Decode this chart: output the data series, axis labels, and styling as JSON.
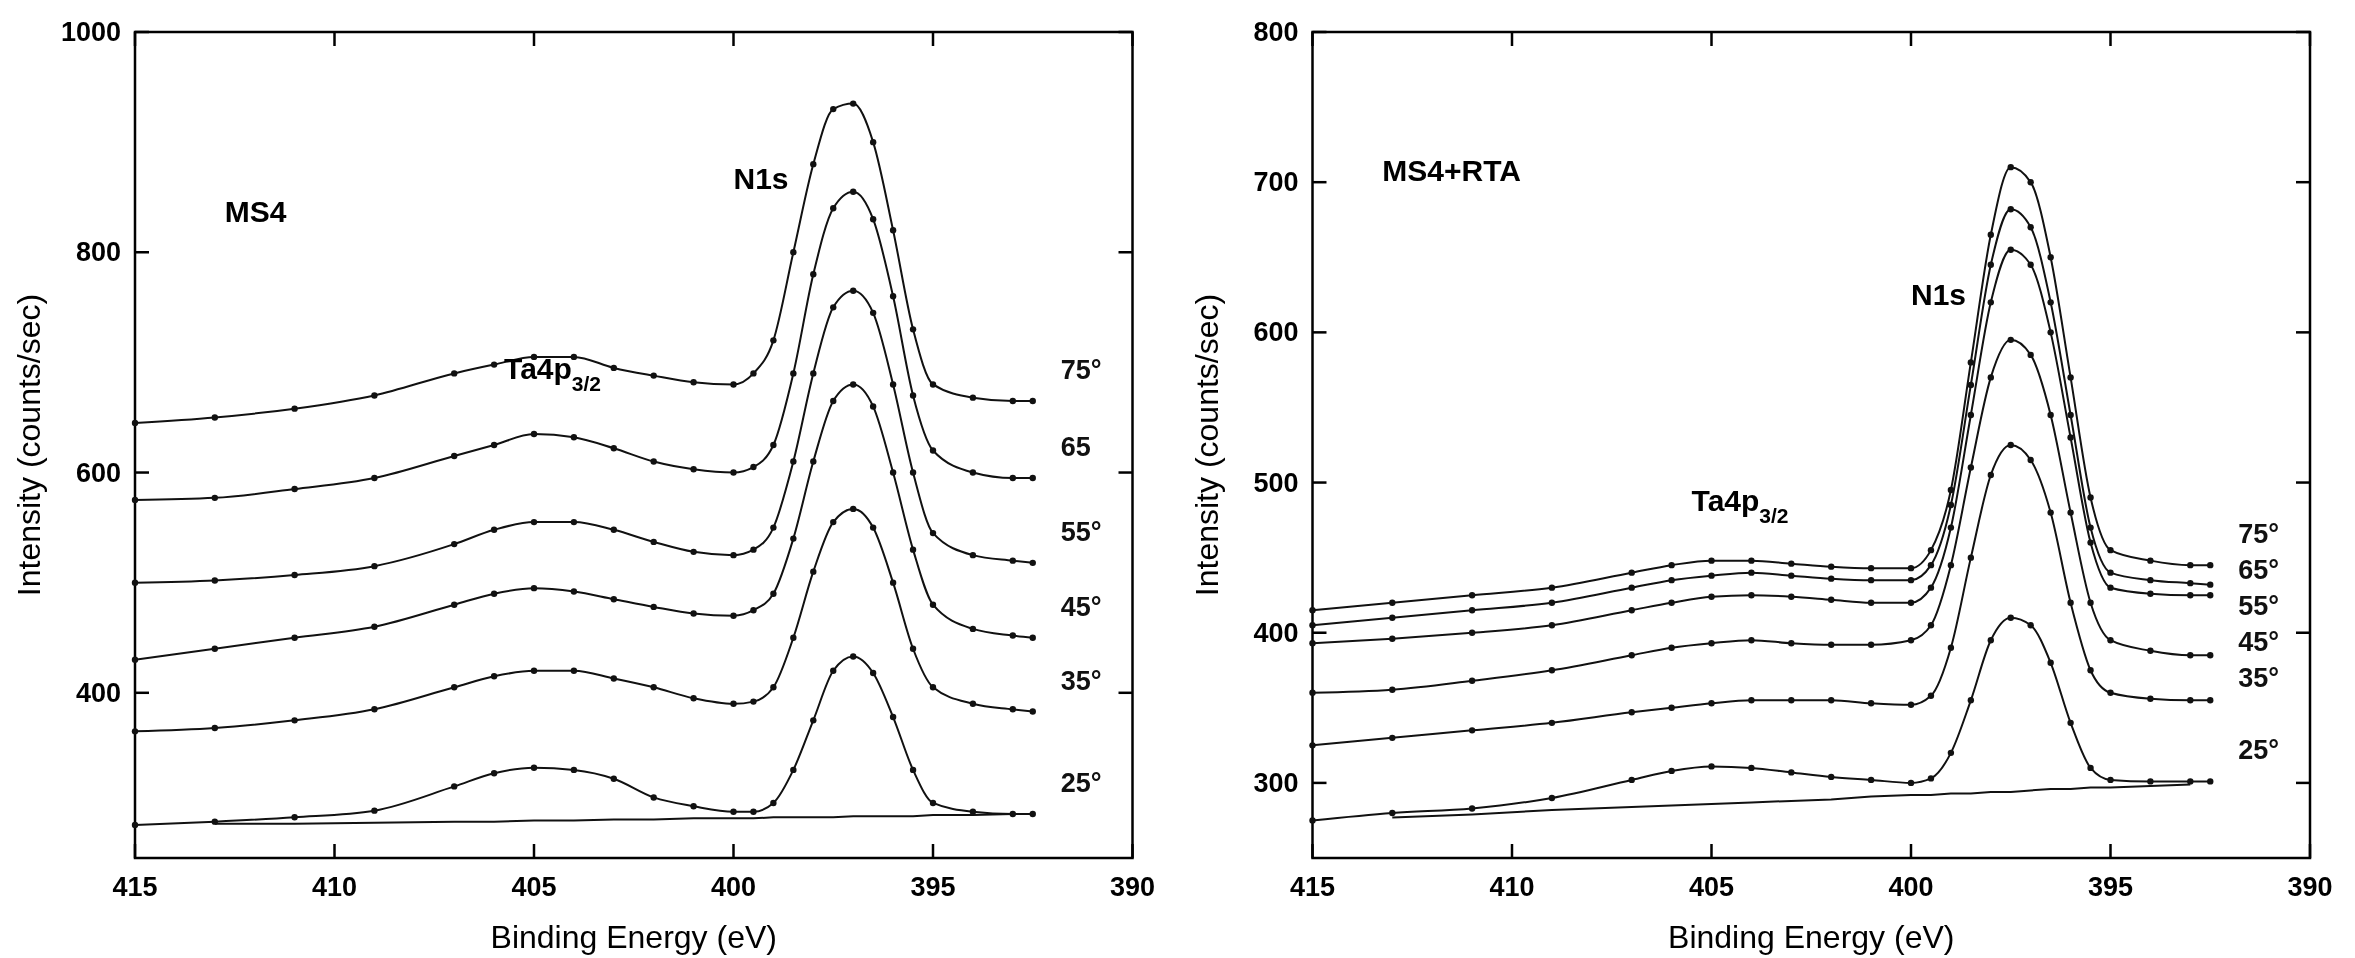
{
  "chart_data": [
    {
      "type": "line",
      "xlabel": "Binding Energy (eV)",
      "ylabel": "Intensity (counts/sec)",
      "xlim": [
        415,
        390
      ],
      "xticks": [
        415,
        410,
        405,
        400,
        395,
        390
      ],
      "ylim": [
        250,
        1000
      ],
      "yticks": [
        400,
        600,
        800,
        1000
      ],
      "grid": false,
      "legend": false,
      "marker": "circle",
      "line_style": "solid",
      "x": [
        415,
        413,
        411,
        409,
        407,
        406,
        405,
        404,
        403,
        402,
        401,
        400,
        399.5,
        399,
        398.5,
        398,
        397.5,
        397,
        396.5,
        396,
        395.5,
        395,
        394,
        393,
        392.5
      ],
      "annotations": [
        "MS4",
        "Ta4p$_{3/2}$",
        "N1s"
      ],
      "series": [
        {
          "name": "75°",
          "color": "#111111",
          "values": [
            645,
            650,
            658,
            670,
            690,
            698,
            705,
            705,
            695,
            688,
            682,
            680,
            690,
            720,
            800,
            880,
            930,
            935,
            900,
            820,
            730,
            680,
            668,
            665,
            665
          ]
        },
        {
          "name": "65",
          "color": "#111111",
          "values": [
            575,
            577,
            585,
            595,
            615,
            625,
            635,
            632,
            622,
            610,
            603,
            600,
            605,
            625,
            690,
            780,
            840,
            855,
            830,
            760,
            670,
            620,
            600,
            595,
            595
          ]
        },
        {
          "name": "55°",
          "color": "#111111",
          "values": [
            500,
            502,
            507,
            515,
            535,
            548,
            555,
            555,
            548,
            537,
            528,
            525,
            530,
            550,
            610,
            690,
            750,
            765,
            745,
            680,
            600,
            545,
            525,
            520,
            518
          ]
        },
        {
          "name": "45°",
          "color": "#111111",
          "values": [
            430,
            440,
            450,
            460,
            480,
            490,
            495,
            492,
            485,
            478,
            472,
            470,
            475,
            490,
            540,
            610,
            665,
            680,
            660,
            600,
            530,
            480,
            458,
            452,
            450
          ]
        },
        {
          "name": "35°",
          "color": "#111111",
          "values": [
            365,
            368,
            375,
            385,
            405,
            415,
            420,
            420,
            413,
            405,
            395,
            390,
            392,
            405,
            450,
            510,
            555,
            567,
            550,
            500,
            440,
            405,
            390,
            385,
            383
          ]
        },
        {
          "name": "25°",
          "color": "#111111",
          "values": [
            280,
            283,
            287,
            293,
            315,
            327,
            332,
            330,
            322,
            305,
            297,
            292,
            292,
            300,
            330,
            375,
            420,
            433,
            418,
            378,
            330,
            300,
            292,
            290,
            290
          ]
        },
        {
          "color": "#111111",
          "marker": "none",
          "values": [
            null,
            281,
            281,
            282,
            283,
            283,
            284,
            284,
            285,
            285,
            286,
            286,
            286,
            287,
            287,
            287,
            287,
            288,
            288,
            288,
            288,
            289,
            289,
            290,
            null
          ]
        }
      ]
    },
    {
      "type": "line",
      "xlabel": "Binding Energy (eV)",
      "ylabel": "Intensity (counts/sec)",
      "xlim": [
        415,
        390
      ],
      "xticks": [
        415,
        410,
        405,
        400,
        395,
        390
      ],
      "ylim": [
        250,
        800
      ],
      "yticks": [
        300,
        400,
        500,
        600,
        700,
        800
      ],
      "grid": false,
      "legend": false,
      "marker": "circle",
      "line_style": "solid",
      "x": [
        415,
        413,
        411,
        409,
        407,
        406,
        405,
        404,
        403,
        402,
        401,
        400,
        399.5,
        399,
        398.5,
        398,
        397.5,
        397,
        396.5,
        396,
        395.5,
        395,
        394,
        393,
        392.5
      ],
      "annotations": [
        "MS4+RTA",
        "Ta4p$_{3/2}$",
        "N1s"
      ],
      "series": [
        {
          "name": "75°",
          "color": "#111111",
          "values": [
            415,
            420,
            425,
            430,
            440,
            445,
            448,
            448,
            446,
            444,
            443,
            443,
            455,
            495,
            580,
            665,
            710,
            700,
            650,
            570,
            490,
            455,
            448,
            445,
            445
          ]
        },
        {
          "name": "65°",
          "color": "#111111",
          "values": [
            405,
            410,
            415,
            420,
            430,
            435,
            438,
            440,
            438,
            436,
            435,
            435,
            445,
            485,
            565,
            645,
            682,
            670,
            620,
            545,
            470,
            440,
            435,
            433,
            432
          ]
        },
        {
          "name": "55°",
          "color": "#111111",
          "values": [
            393,
            396,
            400,
            405,
            415,
            420,
            424,
            425,
            424,
            422,
            420,
            420,
            430,
            470,
            545,
            620,
            655,
            645,
            600,
            530,
            460,
            430,
            426,
            425,
            425
          ]
        },
        {
          "name": "45°",
          "color": "#111111",
          "values": [
            360,
            362,
            368,
            375,
            385,
            390,
            393,
            395,
            393,
            392,
            392,
            395,
            405,
            445,
            510,
            570,
            595,
            585,
            545,
            480,
            420,
            395,
            388,
            385,
            385
          ]
        },
        {
          "name": "35°",
          "color": "#111111",
          "values": [
            325,
            330,
            335,
            340,
            347,
            350,
            353,
            355,
            355,
            355,
            353,
            352,
            358,
            390,
            450,
            505,
            525,
            515,
            480,
            420,
            375,
            360,
            356,
            355,
            355
          ]
        },
        {
          "name": "25°",
          "color": "#111111",
          "values": [
            275,
            280,
            283,
            290,
            302,
            308,
            311,
            310,
            307,
            304,
            302,
            300,
            303,
            320,
            355,
            395,
            410,
            405,
            380,
            340,
            310,
            302,
            301,
            301,
            301
          ]
        },
        {
          "color": "#111111",
          "marker": "none",
          "values": [
            null,
            277,
            279,
            282,
            284,
            285,
            286,
            287,
            288,
            289,
            291,
            292,
            292,
            293,
            293,
            294,
            294,
            295,
            296,
            296,
            297,
            297,
            298,
            299,
            null
          ]
        }
      ]
    }
  ]
}
